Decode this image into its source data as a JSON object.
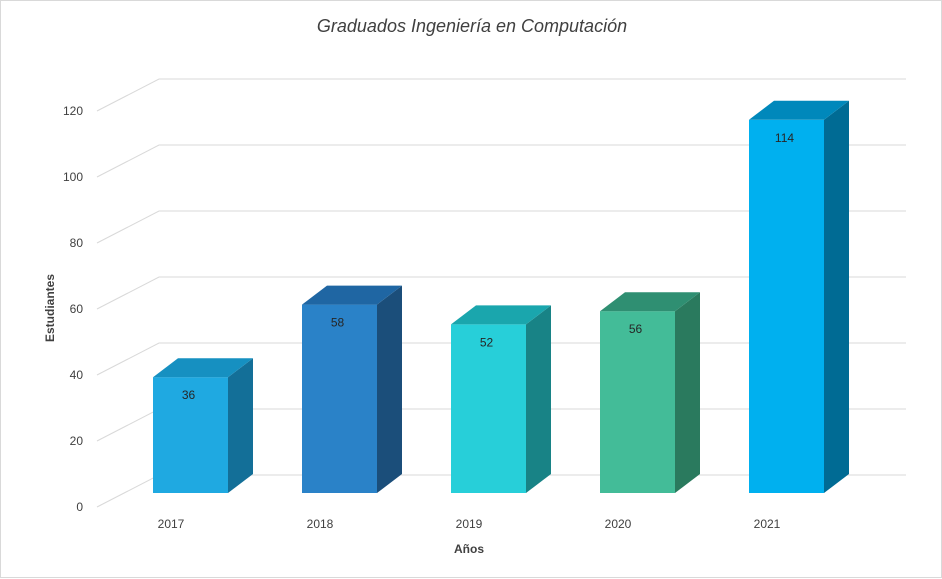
{
  "chart_data": {
    "type": "bar",
    "title": "Graduados Ingeniería en Computación",
    "xlabel": "Años",
    "ylabel": "Estudiantes",
    "categories": [
      "2017",
      "2018",
      "2019",
      "2020",
      "2021"
    ],
    "values": [
      36,
      58,
      52,
      56,
      114
    ],
    "data_labels": [
      "36",
      "58",
      "52",
      "56",
      "114"
    ],
    "y_ticks": [
      "0",
      "20",
      "40",
      "60",
      "80",
      "100",
      "120"
    ],
    "ylim": [
      0,
      120
    ],
    "grid": true,
    "legend": "none",
    "style": "3d-column",
    "colors": {
      "front": [
        "#1fa9e1",
        "#2a82c8",
        "#27cfd9",
        "#43bc98",
        "#00b0ef"
      ],
      "top": [
        "#1690c1",
        "#1f66a3",
        "#1aa6ad",
        "#2f8f72",
        "#0088bb"
      ],
      "side": [
        "#136f98",
        "#1b4e7a",
        "#188386",
        "#2a7a5e",
        "#006b94"
      ]
    }
  }
}
